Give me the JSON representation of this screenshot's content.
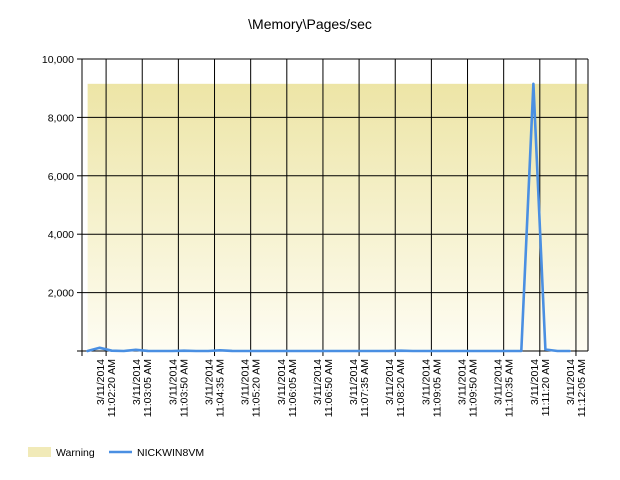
{
  "chart_data": {
    "type": "line",
    "title": "\\Memory\\Pages/sec",
    "xlabel": "",
    "ylabel": "",
    "ylim": [
      0,
      10000
    ],
    "yticks": [
      {
        "value": 0,
        "label": ""
      },
      {
        "value": 2000,
        "label": "2,000"
      },
      {
        "value": 4000,
        "label": "4,000"
      },
      {
        "value": 6000,
        "label": "6,000"
      },
      {
        "value": 8000,
        "label": "8,000"
      },
      {
        "value": 10000,
        "label": "10,000"
      }
    ],
    "x_tick_labels": [
      {
        "date": "3/11/2014",
        "time": "11:02:20 AM"
      },
      {
        "date": "3/11/2014",
        "time": "11:03:05 AM"
      },
      {
        "date": "3/11/2014",
        "time": "11:03:50 AM"
      },
      {
        "date": "3/11/2014",
        "time": "11:04:35 AM"
      },
      {
        "date": "3/11/2014",
        "time": "11:05:20 AM"
      },
      {
        "date": "3/11/2014",
        "time": "11:06:05 AM"
      },
      {
        "date": "3/11/2014",
        "time": "11:06:50 AM"
      },
      {
        "date": "3/11/2014",
        "time": "11:07:35 AM"
      },
      {
        "date": "3/11/2014",
        "time": "11:08:20 AM"
      },
      {
        "date": "3/11/2014",
        "time": "11:09:05 AM"
      },
      {
        "date": "3/11/2014",
        "time": "11:09:50 AM"
      },
      {
        "date": "3/11/2014",
        "time": "11:10:35 AM"
      },
      {
        "date": "3/11/2014",
        "time": "11:11:20 AM"
      },
      {
        "date": "3/11/2014",
        "time": "11:12:05 AM"
      }
    ],
    "x_range": [
      "3/11/2014 11:01:50 AM",
      "3/11/2014 11:12:20 AM"
    ],
    "series": [
      {
        "name": "NICKWIN8VM",
        "color": "#4a8fe2",
        "points": [
          {
            "x": "3/11/2014 11:01:57 AM",
            "y": 0
          },
          {
            "x": "3/11/2014 11:02:12 AM",
            "y": 110
          },
          {
            "x": "3/11/2014 11:02:27 AM",
            "y": 10
          },
          {
            "x": "3/11/2014 11:02:42 AM",
            "y": 0
          },
          {
            "x": "3/11/2014 11:02:57 AM",
            "y": 40
          },
          {
            "x": "3/11/2014 11:03:12 AM",
            "y": 5
          },
          {
            "x": "3/11/2014 11:03:27 AM",
            "y": 0
          },
          {
            "x": "3/11/2014 11:03:42 AM",
            "y": 0
          },
          {
            "x": "3/11/2014 11:03:57 AM",
            "y": 10
          },
          {
            "x": "3/11/2014 11:04:12 AM",
            "y": 0
          },
          {
            "x": "3/11/2014 11:04:27 AM",
            "y": 0
          },
          {
            "x": "3/11/2014 11:04:42 AM",
            "y": 25
          },
          {
            "x": "3/11/2014 11:04:57 AM",
            "y": 5
          },
          {
            "x": "3/11/2014 11:05:12 AM",
            "y": 0
          },
          {
            "x": "3/11/2014 11:05:27 AM",
            "y": 0
          },
          {
            "x": "3/11/2014 11:05:42 AM",
            "y": 0
          },
          {
            "x": "3/11/2014 11:05:57 AM",
            "y": 0
          },
          {
            "x": "3/11/2014 11:06:12 AM",
            "y": 0
          },
          {
            "x": "3/11/2014 11:06:27 AM",
            "y": 0
          },
          {
            "x": "3/11/2014 11:06:42 AM",
            "y": 0
          },
          {
            "x": "3/11/2014 11:06:57 AM",
            "y": 0
          },
          {
            "x": "3/11/2014 11:07:12 AM",
            "y": 0
          },
          {
            "x": "3/11/2014 11:07:27 AM",
            "y": 0
          },
          {
            "x": "3/11/2014 11:07:42 AM",
            "y": 0
          },
          {
            "x": "3/11/2014 11:07:57 AM",
            "y": 0
          },
          {
            "x": "3/11/2014 11:08:12 AM",
            "y": 0
          },
          {
            "x": "3/11/2014 11:08:27 AM",
            "y": 10
          },
          {
            "x": "3/11/2014 11:08:42 AM",
            "y": 0
          },
          {
            "x": "3/11/2014 11:08:57 AM",
            "y": 0
          },
          {
            "x": "3/11/2014 11:09:12 AM",
            "y": 0
          },
          {
            "x": "3/11/2014 11:09:27 AM",
            "y": 0
          },
          {
            "x": "3/11/2014 11:09:42 AM",
            "y": 0
          },
          {
            "x": "3/11/2014 11:09:57 AM",
            "y": 0
          },
          {
            "x": "3/11/2014 11:10:12 AM",
            "y": 0
          },
          {
            "x": "3/11/2014 11:10:27 AM",
            "y": 0
          },
          {
            "x": "3/11/2014 11:10:42 AM",
            "y": 0
          },
          {
            "x": "3/11/2014 11:10:57 AM",
            "y": 0
          },
          {
            "x": "3/11/2014 11:11:12 AM",
            "y": 9150
          },
          {
            "x": "3/11/2014 11:11:27 AM",
            "y": 50
          },
          {
            "x": "3/11/2014 11:11:42 AM",
            "y": 0
          },
          {
            "x": "3/11/2014 11:11:57 AM",
            "y": 0
          }
        ]
      }
    ],
    "warning_band": {
      "name": "Warning",
      "from": 0,
      "to": 9150,
      "x_start": "3/11/2014 11:01:57 AM",
      "x_end": "3/11/2014 11:12:20 AM",
      "color_top": "#ede5a6",
      "color_bottom": "#fefdf3"
    },
    "grid": true,
    "legend": {
      "position": "bottom-left",
      "items": [
        {
          "label": "Warning",
          "kind": "area",
          "color": "#f1eab8"
        },
        {
          "label": "NICKWIN8VM",
          "kind": "line",
          "color": "#4a8fe2"
        }
      ]
    }
  }
}
